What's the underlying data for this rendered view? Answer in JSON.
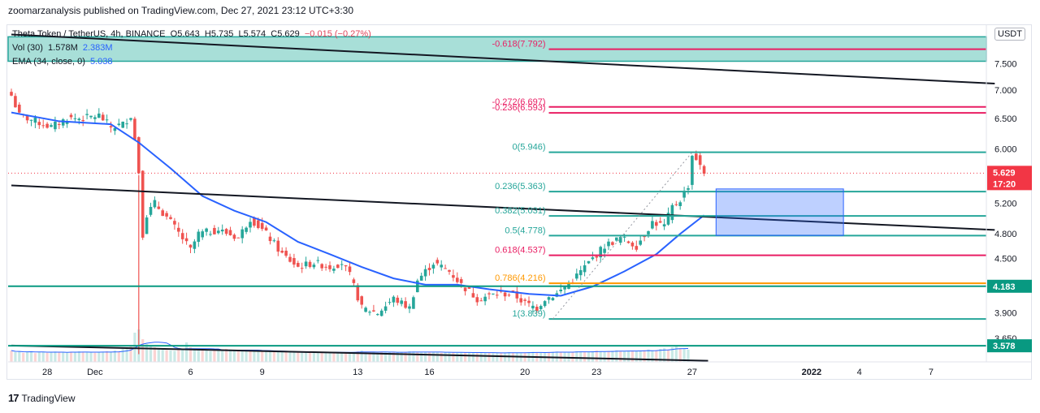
{
  "header": {
    "published": "zoomarzanalysis published on TradingView.com, Dec 27, 2021 23:12 UTC+3:30"
  },
  "legend": {
    "symbol_line": "Theta Token / TetherUS, 4h, BINANCE",
    "ohlc": {
      "O": "5.643",
      "H": "5.735",
      "L": "5.574",
      "C": "5.629",
      "change": "−0.015 (−0.27%)"
    },
    "vol_label": "Vol (30)",
    "vol_value": "1.578M",
    "vol_ma": "2.383M",
    "ema_label": "EMA (34, close, 0)",
    "ema_value": "5.038"
  },
  "currency_badge": "USDT",
  "footer": {
    "logo": "TradingView"
  },
  "colors": {
    "up": "#26a69a",
    "down": "#ef5350",
    "ema": "#2962ff",
    "fib": "#26a69a",
    "fib_neg": "#e91e63",
    "fib_786": "#ff9800",
    "price_tag": "#f23645",
    "level_tag": "#089981"
  },
  "chart_data": {
    "type": "candlestick",
    "y_scale": "log",
    "ylim": [
      3.43,
      8.3
    ],
    "y_ticks": [
      "7.500",
      "7.000",
      "6.500",
      "6.000",
      "5.600",
      "5.200",
      "4.800",
      "4.500",
      "4.200",
      "3.900",
      "3.650"
    ],
    "x_ticks": [
      {
        "label": "28",
        "bar": 9
      },
      {
        "label": "Dec",
        "bar": 21
      },
      {
        "label": "6",
        "bar": 45
      },
      {
        "label": "9",
        "bar": 63
      },
      {
        "label": "13",
        "bar": 87
      },
      {
        "label": "16",
        "bar": 105
      },
      {
        "label": "20",
        "bar": 129
      },
      {
        "label": "23",
        "bar": 147
      },
      {
        "label": "27",
        "bar": 171
      },
      {
        "label": "2022",
        "bar": 201
      },
      {
        "label": "4",
        "bar": 213
      },
      {
        "label": "7",
        "bar": 231
      }
    ],
    "anchor": [
      {
        "bar": 0,
        "c": 6.9
      },
      {
        "bar": 2,
        "c": 6.55
      },
      {
        "bar": 6,
        "c": 6.45
      },
      {
        "bar": 10,
        "c": 6.35
      },
      {
        "bar": 14,
        "c": 6.5
      },
      {
        "bar": 18,
        "c": 6.5
      },
      {
        "bar": 22,
        "c": 6.55
      },
      {
        "bar": 25,
        "c": 6.35
      },
      {
        "bar": 28,
        "c": 6.4
      },
      {
        "bar": 30,
        "c": 6.55
      },
      {
        "bar": 31,
        "c": 6.15
      },
      {
        "bar": 32,
        "c": 5.65
      },
      {
        "bar": 33,
        "c": 4.8
      },
      {
        "bar": 34,
        "c": 5.05
      },
      {
        "bar": 36,
        "c": 5.2
      },
      {
        "bar": 40,
        "c": 4.95
      },
      {
        "bar": 45,
        "c": 4.6
      },
      {
        "bar": 47,
        "c": 4.8
      },
      {
        "bar": 52,
        "c": 4.85
      },
      {
        "bar": 57,
        "c": 4.75
      },
      {
        "bar": 60,
        "c": 5.0
      },
      {
        "bar": 64,
        "c": 4.8
      },
      {
        "bar": 68,
        "c": 4.55
      },
      {
        "bar": 72,
        "c": 4.4
      },
      {
        "bar": 76,
        "c": 4.45
      },
      {
        "bar": 80,
        "c": 4.4
      },
      {
        "bar": 83,
        "c": 4.45
      },
      {
        "bar": 85,
        "c": 4.3
      },
      {
        "bar": 88,
        "c": 3.95
      },
      {
        "bar": 92,
        "c": 3.9
      },
      {
        "bar": 96,
        "c": 4.05
      },
      {
        "bar": 100,
        "c": 3.95
      },
      {
        "bar": 102,
        "c": 4.25
      },
      {
        "bar": 106,
        "c": 4.45
      },
      {
        "bar": 110,
        "c": 4.35
      },
      {
        "bar": 113,
        "c": 4.2
      },
      {
        "bar": 117,
        "c": 4.05
      },
      {
        "bar": 122,
        "c": 4.1
      },
      {
        "bar": 126,
        "c": 4.1
      },
      {
        "bar": 129,
        "c": 4.0
      },
      {
        "bar": 132,
        "c": 3.95
      },
      {
        "bar": 134,
        "c": 4.05
      },
      {
        "bar": 137,
        "c": 4.1
      },
      {
        "bar": 141,
        "c": 4.25
      },
      {
        "bar": 145,
        "c": 4.45
      },
      {
        "bar": 149,
        "c": 4.65
      },
      {
        "bar": 153,
        "c": 4.75
      },
      {
        "bar": 157,
        "c": 4.65
      },
      {
        "bar": 161,
        "c": 4.95
      },
      {
        "bar": 164,
        "c": 4.9
      },
      {
        "bar": 166,
        "c": 5.15
      },
      {
        "bar": 168,
        "c": 5.25
      },
      {
        "bar": 170,
        "c": 5.45
      },
      {
        "bar": 171,
        "c": 5.9
      },
      {
        "bar": 172,
        "c": 5.85
      },
      {
        "bar": 173,
        "c": 5.72
      },
      {
        "bar": 174,
        "c": 5.63
      }
    ],
    "ema_34": [
      {
        "bar": 0,
        "v": 6.6
      },
      {
        "bar": 12,
        "v": 6.45
      },
      {
        "bar": 25,
        "v": 6.4
      },
      {
        "bar": 32,
        "v": 6.1
      },
      {
        "bar": 40,
        "v": 5.7
      },
      {
        "bar": 48,
        "v": 5.3
      },
      {
        "bar": 56,
        "v": 5.1
      },
      {
        "bar": 64,
        "v": 4.95
      },
      {
        "bar": 72,
        "v": 4.7
      },
      {
        "bar": 80,
        "v": 4.55
      },
      {
        "bar": 88,
        "v": 4.4
      },
      {
        "bar": 96,
        "v": 4.27
      },
      {
        "bar": 104,
        "v": 4.2
      },
      {
        "bar": 112,
        "v": 4.2
      },
      {
        "bar": 120,
        "v": 4.15
      },
      {
        "bar": 130,
        "v": 4.1
      },
      {
        "bar": 138,
        "v": 4.08
      },
      {
        "bar": 146,
        "v": 4.18
      },
      {
        "bar": 154,
        "v": 4.35
      },
      {
        "bar": 162,
        "v": 4.55
      },
      {
        "bar": 168,
        "v": 4.8
      },
      {
        "bar": 174,
        "v": 5.04
      }
    ],
    "fib_levels": [
      {
        "label": "-0.618(7.792)",
        "value": 7.792,
        "color": "#e91e63"
      },
      {
        "label": "-0.272(6.697)",
        "value": 6.697,
        "color": "#e91e63"
      },
      {
        "label": "-0.236(6.593)",
        "value": 6.593,
        "color": "#e91e63"
      },
      {
        "label": "0(5.946)",
        "value": 5.946,
        "color": "#26a69a"
      },
      {
        "label": "0.236(5.363)",
        "value": 5.363,
        "color": "#26a69a"
      },
      {
        "label": "0.382(5.031)",
        "value": 5.031,
        "color": "#26a69a"
      },
      {
        "label": "0.5(4.778)",
        "value": 4.778,
        "color": "#26a69a"
      },
      {
        "label": "0.618(4.537)",
        "value": 4.537,
        "color": "#e91e63"
      },
      {
        "label": "0.786(4.216)",
        "value": 4.216,
        "color": "#ff9800"
      },
      {
        "label": "1(3.839)",
        "value": 3.839,
        "color": "#26a69a"
      }
    ],
    "fib_bar_range": [
      135,
      247
    ],
    "horizontal_levels": [
      {
        "value": 4.183,
        "label": "4.183"
      },
      {
        "value": 3.578,
        "label": "3.578"
      }
    ],
    "current_price": {
      "value": 5.629,
      "label": "5.629",
      "countdown": "17:20"
    },
    "top_zone": {
      "from": 7.55,
      "to": 8.05
    },
    "blue_box": {
      "bar_from": 177,
      "bar_to": 209,
      "from": 4.78,
      "to": 5.4
    },
    "trend_lines": [
      {
        "b1": 0,
        "p1": 8.1,
        "b2": 247,
        "p2": 7.12
      },
      {
        "b1": 0,
        "p1": 5.45,
        "b2": 247,
        "p2": 4.85
      },
      {
        "b1": 0,
        "p1": 3.58,
        "b2": 175,
        "p2": 3.44
      }
    ],
    "volume": [
      0.35,
      0.3,
      0.32,
      0.28,
      0.3,
      0.33,
      0.27,
      0.3,
      0.31,
      0.28,
      0.3,
      0.32,
      0.29,
      0.3,
      0.28,
      0.31,
      0.3,
      0.33,
      0.3,
      0.29,
      0.3,
      0.28,
      0.31,
      0.3,
      0.33,
      0.3,
      0.35,
      0.32,
      0.4,
      0.45,
      0.5,
      0.9,
      1.0,
      0.7,
      0.55,
      0.5,
      0.45,
      0.4,
      0.38,
      0.36,
      0.35,
      0.34,
      0.4,
      0.38,
      0.6,
      0.45,
      0.4,
      0.38,
      0.36,
      0.35,
      0.33,
      0.34,
      0.36,
      0.35,
      0.4,
      0.38,
      0.37,
      0.36,
      0.35,
      0.34,
      0.35,
      0.36,
      0.34,
      0.33,
      0.35,
      0.33,
      0.32,
      0.31,
      0.3,
      0.3,
      0.31,
      0.3,
      0.29,
      0.3,
      0.31,
      0.3,
      0.29,
      0.3,
      0.28,
      0.29,
      0.3,
      0.3,
      0.29,
      0.3,
      0.28,
      0.3,
      0.31,
      0.33,
      0.35,
      0.3,
      0.29,
      0.3,
      0.28,
      0.3,
      0.29,
      0.3,
      0.31,
      0.3,
      0.29,
      0.3,
      0.33,
      0.32,
      0.3,
      0.29,
      0.3,
      0.31,
      0.3,
      0.29,
      0.28,
      0.29,
      0.3,
      0.29,
      0.28,
      0.29,
      0.3,
      0.29,
      0.28,
      0.27,
      0.28,
      0.29,
      0.28,
      0.27,
      0.28,
      0.27,
      0.28,
      0.3,
      0.29,
      0.28,
      0.27,
      0.28,
      0.3,
      0.31,
      0.3,
      0.28,
      0.29,
      0.3,
      0.31,
      0.32,
      0.3,
      0.29,
      0.3,
      0.31,
      0.33,
      0.32,
      0.3,
      0.31,
      0.33,
      0.35,
      0.32,
      0.31,
      0.33,
      0.34,
      0.36,
      0.33,
      0.32,
      0.34,
      0.35,
      0.33,
      0.34,
      0.36,
      0.38,
      0.35,
      0.36,
      0.4,
      0.42,
      0.38,
      0.45,
      0.5,
      0.42,
      0.4,
      0.38
    ]
  }
}
